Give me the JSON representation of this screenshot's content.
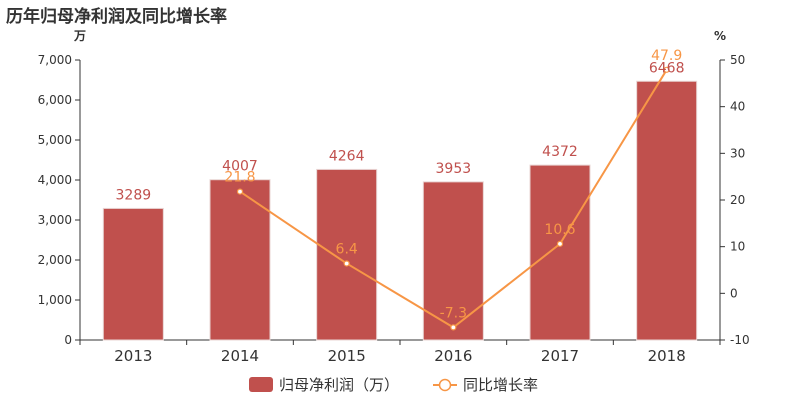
{
  "chart_data": {
    "type": "bar",
    "title": "历年归母净利润及同比增长率",
    "categories": [
      "2013",
      "2014",
      "2015",
      "2016",
      "2017",
      "2018"
    ],
    "series": [
      {
        "name": "归母净利润（万）",
        "type": "bar",
        "axis": "left",
        "values": [
          3289,
          4007,
          4264,
          3953,
          4372,
          6468
        ],
        "labels": [
          "3289",
          "4007",
          "4264",
          "3953",
          "4372",
          "6468"
        ],
        "color": "#c0504d"
      },
      {
        "name": "同比增长率",
        "type": "line",
        "axis": "right",
        "values": [
          null,
          21.8,
          6.4,
          -7.3,
          10.6,
          47.9
        ],
        "labels": [
          "",
          "21.8",
          "6.4",
          "-7.3",
          "10.6",
          "47.9"
        ],
        "color": "#f79646"
      }
    ],
    "y_left": {
      "unit": "万",
      "range": [
        0,
        7000
      ],
      "ticks": [
        0,
        1000,
        2000,
        3000,
        4000,
        5000,
        6000,
        7000
      ],
      "tick_labels": [
        "0",
        "1,000",
        "2,000",
        "3,000",
        "4,000",
        "5,000",
        "6,000",
        "7,000"
      ]
    },
    "y_right": {
      "unit": "%",
      "range": [
        -10,
        50
      ],
      "ticks": [
        -10,
        0,
        10,
        20,
        30,
        40,
        50
      ],
      "tick_labels": [
        "-10",
        "0",
        "10",
        "20",
        "30",
        "40",
        "50"
      ]
    },
    "grid": false,
    "legend_position": "bottom-center"
  }
}
